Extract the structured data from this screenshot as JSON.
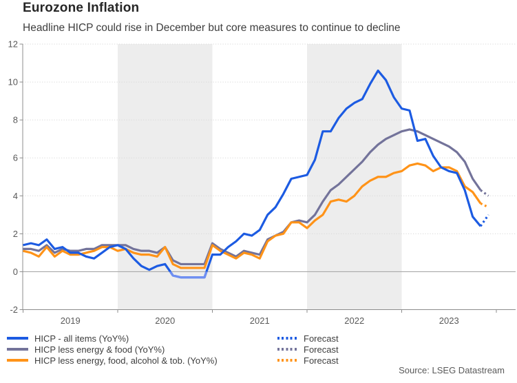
{
  "header": {
    "title": "Eurozone Inflation",
    "subtitle": "Headline HICP could rise in December but core measures to continue to decline"
  },
  "source": "Source: LSEG Datastream",
  "colors": {
    "hicp_blue": "#1c5be2",
    "hicp_blue_light": "#6f8ff2",
    "core_gray": "#73739a",
    "core_orange": "#ff9318",
    "band_gray": "#ededed",
    "grid": "#d8d8d8",
    "zero_line": "#a9a9a9",
    "axis": "#8c8c8c",
    "tick_text": "#595959"
  },
  "legend": {
    "series_rows": [
      {
        "label": "HICP - all items (YoY%)",
        "color_key": "hicp_blue"
      },
      {
        "label": "HICP less energy & food (YoY%)",
        "color_key": "core_gray"
      },
      {
        "label": "HICP less energy, food, alcohol & tob. (YoY%)",
        "color_key": "core_orange"
      }
    ],
    "forecast_rows": [
      {
        "label": "Forecast",
        "color_key": "hicp_blue"
      },
      {
        "label": "Forecast",
        "color_key": "core_gray"
      },
      {
        "label": "Forecast",
        "color_key": "core_orange"
      }
    ]
  },
  "chart_data": {
    "type": "line",
    "title": "Eurozone Inflation",
    "subtitle": "Headline HICP could rise in December but core measures to continue to decline",
    "x_unit": "month",
    "x_range": [
      "2019-01",
      "2023-12"
    ],
    "xtick_labels": [
      "2019",
      "2020",
      "2021",
      "2022",
      "2023"
    ],
    "yticks": [
      -2,
      0,
      2,
      4,
      6,
      8,
      10,
      12
    ],
    "ylim": [
      -2,
      12
    ],
    "ylabel": "",
    "xlabel": "",
    "grid": "dotted-horizontal",
    "legend_position": "bottom",
    "shaded_bands_years": [
      "2020",
      "2022"
    ],
    "series": [
      {
        "name": "HICP - all items (YoY%)",
        "slug": "hicp-all-items",
        "color_key": "hicp_blue",
        "negative_tint_key": "hicp_blue_light",
        "values": [
          1.4,
          1.5,
          1.4,
          1.7,
          1.2,
          1.3,
          1.0,
          1.0,
          0.8,
          0.7,
          1.0,
          1.3,
          1.4,
          1.2,
          0.7,
          0.3,
          0.1,
          0.3,
          0.4,
          -0.2,
          -0.3,
          -0.3,
          -0.3,
          -0.3,
          0.9,
          0.9,
          1.3,
          1.6,
          2.0,
          1.9,
          2.2,
          3.0,
          3.4,
          4.1,
          4.9,
          5.0,
          5.1,
          5.9,
          7.4,
          7.4,
          8.1,
          8.6,
          8.9,
          9.1,
          9.9,
          10.6,
          10.1,
          9.2,
          8.6,
          8.5,
          6.9,
          7.0,
          6.1,
          5.5,
          5.3,
          5.2,
          4.3,
          2.9,
          2.4
        ],
        "forecast_values": [
          3.0
        ]
      },
      {
        "name": "HICP less energy & food (YoY%)",
        "slug": "hicp-less-energy-food",
        "color_key": "core_gray",
        "values": [
          1.2,
          1.2,
          1.1,
          1.4,
          1.0,
          1.2,
          1.1,
          1.1,
          1.2,
          1.2,
          1.4,
          1.4,
          1.4,
          1.4,
          1.2,
          1.1,
          1.1,
          1.0,
          1.3,
          0.6,
          0.4,
          0.4,
          0.4,
          0.4,
          1.5,
          1.2,
          1.0,
          0.8,
          1.1,
          1.0,
          0.9,
          1.7,
          1.9,
          2.1,
          2.6,
          2.7,
          2.6,
          3.0,
          3.7,
          4.3,
          4.6,
          5.0,
          5.4,
          5.8,
          6.3,
          6.7,
          7.0,
          7.2,
          7.4,
          7.5,
          7.4,
          7.2,
          7.0,
          6.8,
          6.6,
          6.3,
          5.8,
          4.9,
          4.3
        ],
        "forecast_values": [
          4.0
        ]
      },
      {
        "name": "HICP less energy, food, alcohol & tob. (YoY%)",
        "slug": "hicp-less-energy-food-alcohol-tobacco",
        "color_key": "core_orange",
        "values": [
          1.1,
          1.0,
          0.8,
          1.3,
          0.8,
          1.1,
          0.9,
          0.9,
          1.0,
          1.1,
          1.3,
          1.3,
          1.1,
          1.2,
          1.0,
          0.9,
          0.9,
          0.8,
          1.3,
          0.4,
          0.2,
          0.2,
          0.2,
          0.2,
          1.4,
          1.1,
          0.9,
          0.7,
          1.0,
          0.9,
          0.7,
          1.6,
          1.9,
          2.0,
          2.6,
          2.6,
          2.3,
          2.7,
          3.0,
          3.7,
          3.8,
          3.7,
          4.0,
          4.5,
          4.8,
          5.0,
          5.0,
          5.2,
          5.3,
          5.6,
          5.7,
          5.6,
          5.3,
          5.5,
          5.5,
          5.3,
          4.5,
          4.2,
          3.6
        ],
        "forecast_values": [
          3.4
        ]
      }
    ]
  }
}
